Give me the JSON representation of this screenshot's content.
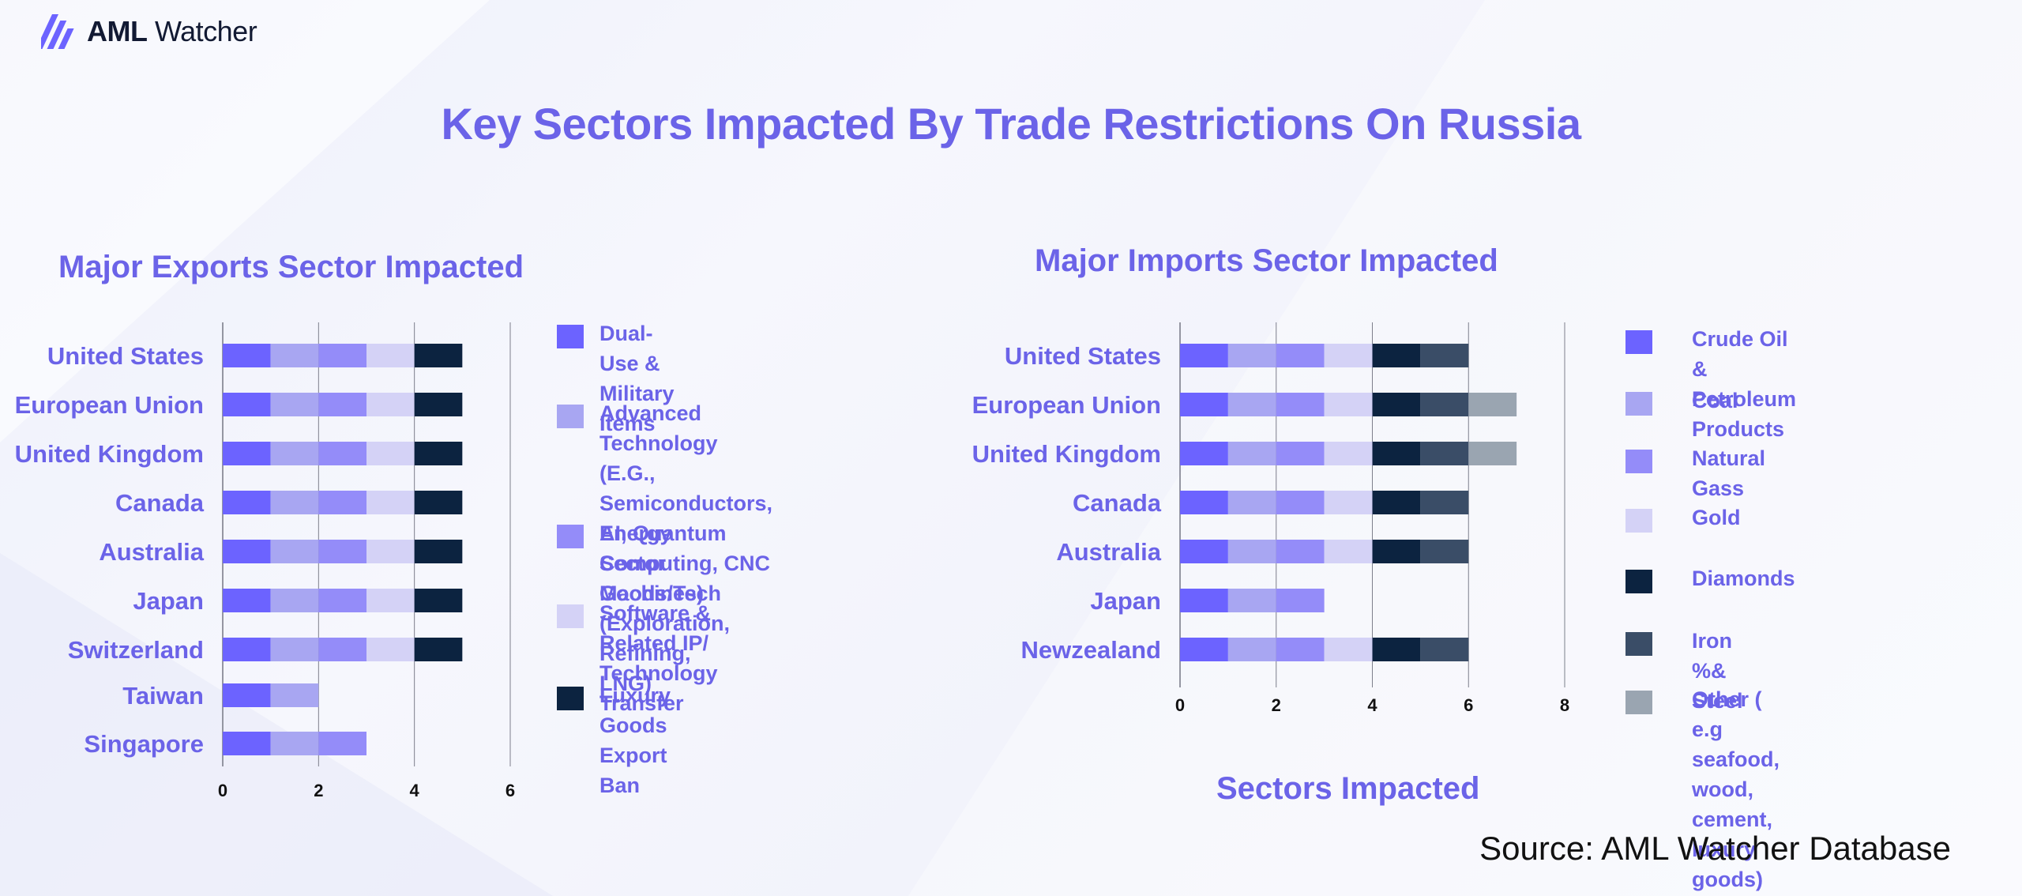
{
  "logo": {
    "brand_bold": "AML",
    "brand_light": " Watcher",
    "icon": "aml-watcher-logo-icon"
  },
  "title": "Key Sectors Impacted By Trade Restrictions On Russia",
  "source": "Source: AML Watcher Database",
  "x_axis_title": "Sectors Impacted",
  "colors": {
    "title": "#6b63e8",
    "seg1": "#6c63ff",
    "seg2": "#a8a6f2",
    "seg3": "#948cf9",
    "seg4": "#d4d2f6",
    "seg5": "#0c2340",
    "seg6": "#3a4d67",
    "seg7": "#9aa5b1"
  },
  "chart_data": [
    {
      "type": "bar",
      "orientation": "horizontal",
      "stacked": true,
      "title": "Major Exports Sector Impacted",
      "categories": [
        "United States",
        "European Union",
        "United Kingdom",
        "Canada",
        "Australia",
        "Japan",
        "Switzerland",
        "Taiwan",
        "Singapore"
      ],
      "series": [
        {
          "name": "Dual-Use & Military Items",
          "color": "#6c63ff",
          "values": [
            1,
            1,
            1,
            1,
            1,
            1,
            1,
            1,
            1
          ]
        },
        {
          "name": "Advanced Technology (E.G., Semiconductors, AI, Quantum Computing, CNC Machines)",
          "color": "#a8a6f2",
          "values": [
            1,
            1,
            1,
            1,
            1,
            1,
            1,
            1,
            1
          ]
        },
        {
          "name": "Energy Sector Goods/Tech (Exploration, Refining, LNG)",
          "color": "#948cf9",
          "values": [
            1,
            1,
            1,
            1,
            1,
            1,
            1,
            0,
            1
          ]
        },
        {
          "name": "Software & Related IP/ Technology Transfer",
          "color": "#d4d2f6",
          "values": [
            1,
            1,
            1,
            1,
            1,
            1,
            1,
            0,
            0
          ]
        },
        {
          "name": "Luxury Goods Export Ban",
          "color": "#0c2340",
          "values": [
            1,
            1,
            1,
            1,
            1,
            1,
            1,
            0,
            0
          ]
        }
      ],
      "legend_lines": [
        [
          "Dual-Use & Military",
          "Items"
        ],
        [
          "Advanced Technology (E.G.,",
          "Semiconductors, AI, Quantum",
          "Computing, CNC Machines)"
        ],
        [
          "Energy Sector Goods/Tech",
          "(Exploration, Refining, LNG)"
        ],
        [
          "Software & Related IP/",
          "Technology Transfer"
        ],
        [
          "Luxury Goods Export",
          "Ban"
        ]
      ],
      "xlim": [
        0,
        6
      ],
      "xticks": [
        "0",
        "2",
        "4",
        "6"
      ],
      "grid": true,
      "legend_position": "right"
    },
    {
      "type": "bar",
      "orientation": "horizontal",
      "stacked": true,
      "title": "Major Imports Sector Impacted",
      "xlabel": "Sectors Impacted",
      "categories": [
        "United States",
        "European Union",
        "United Kingdom",
        "Canada",
        "Australia",
        "Japan",
        "Newzealand"
      ],
      "series": [
        {
          "name": "Crude Oil & Petroleum Products",
          "color": "#6c63ff",
          "values": [
            1,
            1,
            1,
            1,
            1,
            1,
            1
          ]
        },
        {
          "name": "Coal",
          "color": "#a8a6f2",
          "values": [
            1,
            1,
            1,
            1,
            1,
            1,
            1
          ]
        },
        {
          "name": "Natural Gass",
          "color": "#948cf9",
          "values": [
            1,
            1,
            1,
            1,
            1,
            1,
            1
          ]
        },
        {
          "name": "Gold",
          "color": "#d4d2f6",
          "values": [
            1,
            1,
            1,
            1,
            1,
            0,
            1
          ]
        },
        {
          "name": "Diamonds",
          "color": "#0c2340",
          "values": [
            1,
            1,
            1,
            1,
            1,
            0,
            1
          ]
        },
        {
          "name": "Iron %& Steel",
          "color": "#3a4d67",
          "values": [
            1,
            1,
            1,
            1,
            1,
            0,
            1
          ]
        },
        {
          "name": "Other ( e.g seafood, wood, cement, luxury goods)",
          "color": "#9aa5b1",
          "values": [
            0,
            1,
            1,
            0,
            0,
            0,
            0
          ]
        }
      ],
      "legend_lines": [
        [
          "Crude Oil & Petroleum",
          "Products"
        ],
        [
          "Coal"
        ],
        [
          "Natural Gass"
        ],
        [
          "Gold"
        ],
        [
          "Diamonds"
        ],
        [
          "Iron %& Steel"
        ],
        [
          "Other ( e.g seafood, wood,",
          "cement, luxury goods)"
        ]
      ],
      "xlim": [
        0,
        8
      ],
      "xticks": [
        "0",
        "2",
        "4",
        "6",
        "8"
      ],
      "grid": true,
      "legend_position": "right"
    }
  ]
}
